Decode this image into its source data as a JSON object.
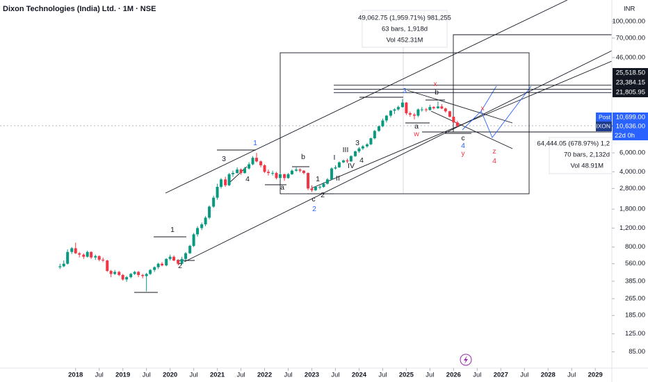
{
  "header": {
    "title": "Dixon Technologies (India) Ltd. · 1M · NSE",
    "currency": "INR"
  },
  "chart_data": {
    "type": "candlestick",
    "log_scale": true,
    "up_color": "#089981",
    "down_color": "#f23645",
    "xlim": [
      2016.4,
      2029.35
    ],
    "ylim": [
      60,
      158000
    ],
    "x": [
      2017.67,
      2017.75,
      2017.83,
      2017.92,
      2018,
      2018.08,
      2018.17,
      2018.25,
      2018.33,
      2018.42,
      2018.5,
      2018.58,
      2018.67,
      2018.75,
      2018.83,
      2018.92,
      2019,
      2019.08,
      2019.17,
      2019.25,
      2019.33,
      2019.42,
      2019.5,
      2019.58,
      2019.67,
      2019.75,
      2019.83,
      2019.92,
      2020,
      2020.08,
      2020.17,
      2020.25,
      2020.33,
      2020.42,
      2020.5,
      2020.58,
      2020.67,
      2020.75,
      2020.83,
      2020.92,
      2021,
      2021.08,
      2021.17,
      2021.25,
      2021.33,
      2021.42,
      2021.5,
      2021.58,
      2021.67,
      2021.75,
      2021.83,
      2021.92,
      2022,
      2022.08,
      2022.17,
      2022.25,
      2022.33,
      2022.42,
      2022.5,
      2022.58,
      2022.67,
      2022.75,
      2022.83,
      2022.92,
      2023,
      2023.08,
      2023.17,
      2023.25,
      2023.33,
      2023.42,
      2023.5,
      2023.58,
      2023.67,
      2023.75,
      2023.83,
      2023.92,
      2024,
      2024.08,
      2024.17,
      2024.25,
      2024.33,
      2024.42,
      2024.5,
      2024.58,
      2024.67,
      2024.75,
      2024.83,
      2024.92,
      2025,
      2025.08,
      2025.17,
      2025.25,
      2025.33,
      2025.42,
      2025.5,
      2025.58,
      2025.67,
      2025.75,
      2025.83,
      2025.92,
      2026,
      2026.08
    ],
    "ohlc": [
      [
        520,
        560,
        500,
        530
      ],
      [
        530,
        600,
        520,
        560
      ],
      [
        560,
        760,
        550,
        720
      ],
      [
        720,
        800,
        690,
        780
      ],
      [
        780,
        880,
        690,
        700
      ],
      [
        700,
        720,
        640,
        680
      ],
      [
        680,
        700,
        620,
        650
      ],
      [
        650,
        740,
        640,
        720
      ],
      [
        720,
        730,
        620,
        640
      ],
      [
        640,
        680,
        610,
        660
      ],
      [
        660,
        670,
        590,
        610
      ],
      [
        610,
        640,
        580,
        600
      ],
      [
        600,
        610,
        470,
        480
      ],
      [
        480,
        490,
        420,
        450
      ],
      [
        450,
        490,
        440,
        470
      ],
      [
        470,
        480,
        430,
        440
      ],
      [
        440,
        450,
        390,
        400
      ],
      [
        400,
        430,
        380,
        420
      ],
      [
        420,
        460,
        410,
        450
      ],
      [
        450,
        480,
        440,
        470
      ],
      [
        470,
        480,
        420,
        440
      ],
      [
        440,
        450,
        410,
        430
      ],
      [
        430,
        460,
        310,
        450
      ],
      [
        450,
        500,
        440,
        490
      ],
      [
        490,
        530,
        470,
        520
      ],
      [
        520,
        570,
        500,
        560
      ],
      [
        560,
        580,
        530,
        540
      ],
      [
        540,
        630,
        530,
        620
      ],
      [
        620,
        680,
        600,
        650
      ],
      [
        650,
        670,
        590,
        600
      ],
      [
        600,
        620,
        540,
        560
      ],
      [
        560,
        650,
        550,
        620
      ],
      [
        620,
        720,
        600,
        700
      ],
      [
        700,
        840,
        690,
        820
      ],
      [
        820,
        1080,
        800,
        1050
      ],
      [
        1050,
        1250,
        1000,
        1200
      ],
      [
        1200,
        1350,
        1150,
        1300
      ],
      [
        1300,
        1550,
        1250,
        1500
      ],
      [
        1500,
        1950,
        1450,
        1900
      ],
      [
        1900,
        2400,
        1850,
        2300
      ],
      [
        2300,
        3100,
        2200,
        2900
      ],
      [
        2900,
        3500,
        2800,
        3400
      ],
      [
        3400,
        3600,
        2900,
        3000
      ],
      [
        3000,
        3900,
        2950,
        3800
      ],
      [
        3800,
        4100,
        3600,
        3900
      ],
      [
        3900,
        4400,
        3850,
        4200
      ],
      [
        4200,
        4300,
        3750,
        3900
      ],
      [
        3900,
        4450,
        3850,
        4300
      ],
      [
        4300,
        4900,
        4200,
        4700
      ],
      [
        4700,
        5600,
        4600,
        5400
      ],
      [
        5400,
        6000,
        4900,
        5000
      ],
      [
        5000,
        5100,
        4400,
        4600
      ],
      [
        4600,
        4700,
        3900,
        4000
      ],
      [
        4000,
        4200,
        3700,
        3900
      ],
      [
        3900,
        4100,
        3700,
        3900
      ],
      [
        3900,
        4000,
        3400,
        3500
      ],
      [
        3500,
        3900,
        3400,
        3800
      ],
      [
        3800,
        3850,
        3300,
        3500
      ],
      [
        3500,
        3900,
        3450,
        3800
      ],
      [
        3800,
        4200,
        3750,
        4100
      ],
      [
        4100,
        4400,
        4000,
        4200
      ],
      [
        4200,
        4300,
        3950,
        4100
      ],
      [
        4100,
        4150,
        3800,
        3900
      ],
      [
        3900,
        3950,
        2700,
        2800
      ],
      [
        2800,
        3000,
        2600,
        2700
      ],
      [
        2700,
        2950,
        2650,
        2900
      ],
      [
        2900,
        3000,
        2750,
        2900
      ],
      [
        2900,
        3200,
        2850,
        3100
      ],
      [
        3100,
        3500,
        3050,
        3400
      ],
      [
        3400,
        4400,
        3350,
        4300
      ],
      [
        4300,
        4600,
        4200,
        4400
      ],
      [
        4400,
        5000,
        4350,
        4900
      ],
      [
        4900,
        5200,
        4800,
        5100
      ],
      [
        5100,
        5300,
        4800,
        5000
      ],
      [
        5000,
        5700,
        4950,
        5600
      ],
      [
        5600,
        6300,
        5500,
        6200
      ],
      [
        6200,
        6800,
        6000,
        6600
      ],
      [
        6600,
        7100,
        6400,
        6900
      ],
      [
        6900,
        7400,
        6700,
        7200
      ],
      [
        7200,
        8300,
        7100,
        8200
      ],
      [
        8200,
        9800,
        8000,
        9600
      ],
      [
        9600,
        10800,
        9400,
        10600
      ],
      [
        10600,
        12500,
        10400,
        12000
      ],
      [
        12000,
        13500,
        11500,
        13300
      ],
      [
        13300,
        15000,
        12800,
        14800
      ],
      [
        14800,
        15600,
        13800,
        15200
      ],
      [
        15200,
        16500,
        14800,
        16000
      ],
      [
        16000,
        19000,
        15800,
        17600
      ],
      [
        17600,
        17800,
        13500,
        14000
      ],
      [
        14000,
        14500,
        13000,
        13600
      ],
      [
        13600,
        14100,
        12300,
        13300
      ],
      [
        13300,
        15500,
        12900,
        15200
      ],
      [
        15200,
        16000,
        14500,
        15200
      ],
      [
        15200,
        15700,
        14400,
        15000
      ],
      [
        15000,
        16800,
        14800,
        16000
      ],
      [
        16000,
        16300,
        15200,
        15600
      ],
      [
        15600,
        18000,
        15400,
        16200
      ],
      [
        16200,
        17000,
        15300,
        15500
      ],
      [
        15500,
        15800,
        14200,
        14600
      ],
      [
        14600,
        14800,
        12800,
        13000
      ],
      [
        13000,
        13200,
        11200,
        11500
      ],
      [
        11500,
        11900,
        10400,
        10636
      ]
    ],
    "xticks": [
      2018,
      {
        "value": 2018.5,
        "label": "Jul"
      },
      2019,
      {
        "value": 2019.5,
        "label": "Jul"
      },
      2020,
      {
        "value": 2020.5,
        "label": "Jul"
      },
      2021,
      {
        "value": 2021.5,
        "label": "Jul"
      },
      2022,
      {
        "value": 2022.5,
        "label": "Jul"
      },
      2023,
      {
        "value": 2023.5,
        "label": "Jul"
      },
      2024,
      {
        "value": 2024.5,
        "label": "Jul"
      },
      2025,
      {
        "value": 2025.5,
        "label": "Jul"
      },
      2026,
      {
        "value": 2026.5,
        "label": "Jul"
      },
      2027,
      {
        "value": 2027.5,
        "label": "Jul"
      },
      2028,
      {
        "value": 2028.5,
        "label": "Jul"
      },
      2029
    ],
    "yticks": [
      {
        "value": 100000,
        "label": "100,000.00"
      },
      {
        "value": 70000,
        "label": "70,000.00"
      },
      {
        "value": 46000,
        "label": "46,000.00"
      },
      {
        "value": 6000,
        "label": "6,000.00"
      },
      {
        "value": 4000,
        "label": "4,000.00"
      },
      {
        "value": 2800,
        "label": "2,800.00"
      },
      {
        "value": 1800,
        "label": "1,800.00"
      },
      {
        "value": 1200,
        "label": "1,200.00"
      },
      {
        "value": 800,
        "label": "800.00"
      },
      {
        "value": 560,
        "label": "560.00"
      },
      {
        "value": 385,
        "label": "385.00"
      },
      {
        "value": 265,
        "label": "265.00"
      },
      {
        "value": 185,
        "label": "185.00"
      },
      {
        "value": 125,
        "label": "125.00"
      },
      {
        "value": 85,
        "label": "85.00"
      }
    ],
    "price_levels": [
      {
        "value": 25518.5,
        "label": "25,518.50"
      },
      {
        "value": 23384.15,
        "label": "23,384.15"
      },
      {
        "value": 21805.95,
        "label": "21,805.95"
      }
    ],
    "post_price": {
      "value": 10699,
      "label": "10,699.00",
      "tag": "Post"
    },
    "last_price": {
      "value": 10636,
      "label": "10,636.00",
      "tag": "DIXON",
      "countdown": "22d 0h"
    }
  },
  "measure_top": [
    "49,062.75 (1,959.71%) 981,255",
    "63 bars, 1,918d",
    "Vol 452.31M"
  ],
  "measure_bottom": [
    "64,444.05 (678.97%) 1,2",
    "70 bars, 2,132d",
    "Vol 48.91M"
  ],
  "wave_labels": [
    "1",
    "2",
    "3",
    "4",
    "1",
    "a",
    "b",
    "c",
    "2",
    "1",
    "2",
    "I",
    "II",
    "III",
    "IV",
    "3",
    "4",
    "3",
    "b",
    "x",
    "a",
    "w",
    "c",
    "4",
    "y",
    "x",
    "z",
    "4"
  ]
}
